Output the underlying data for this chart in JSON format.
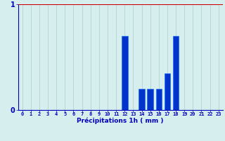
{
  "hours": [
    0,
    1,
    2,
    3,
    4,
    5,
    6,
    7,
    8,
    9,
    10,
    11,
    12,
    13,
    14,
    15,
    16,
    17,
    18,
    19,
    20,
    21,
    22,
    23
  ],
  "values": [
    0,
    0,
    0,
    0,
    0,
    0,
    0,
    0,
    0,
    0,
    0,
    0,
    0.7,
    0,
    0.2,
    0.2,
    0.2,
    0.35,
    0.7,
    0,
    0,
    0,
    0,
    0
  ],
  "bar_color": "#0033cc",
  "bar_edge_color": "#0066ff",
  "background_color": "#d6eeee",
  "grid_color": "#aacccc",
  "axis_label_color": "#0000bb",
  "tick_color": "#0000bb",
  "xlabel": "Précipitations 1h ( mm )",
  "ylim": [
    0,
    1.0
  ],
  "ytick_labels": [
    "0",
    "1"
  ],
  "ytick_values": [
    0,
    1
  ],
  "redline_color": "#cc0000",
  "figsize": [
    3.2,
    2.0
  ],
  "dpi": 100
}
